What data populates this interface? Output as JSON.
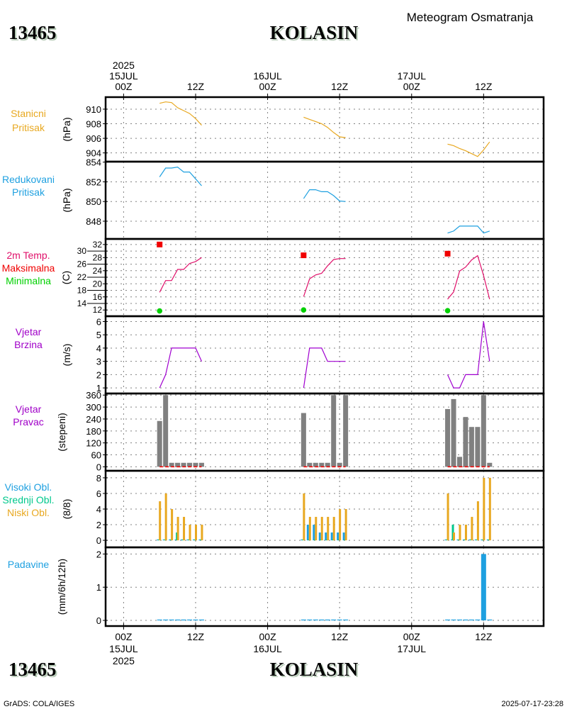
{
  "header": {
    "station_id": "13465",
    "station_name": "KOLASIN",
    "title": "Meteogram Osmatranja"
  },
  "footer": {
    "station_id": "13465",
    "station_name": "KOLASIN",
    "credit": "GrADS: COLA/IGES",
    "timestamp": "2025-07-17-23:28"
  },
  "time_axis": {
    "xlim_hours_from_15JUL_00Z": [
      -3,
      70
    ],
    "grid_hours": [
      0,
      12,
      24,
      36,
      48,
      60
    ],
    "top_labels": [
      {
        "hour": 0,
        "lines": [
          "2025",
          "15JUL",
          "00Z"
        ]
      },
      {
        "hour": 12,
        "lines": [
          "12Z"
        ]
      },
      {
        "hour": 24,
        "lines": [
          "16JUL",
          "00Z"
        ]
      },
      {
        "hour": 36,
        "lines": [
          "12Z"
        ]
      },
      {
        "hour": 48,
        "lines": [
          "17JUL",
          "00Z"
        ]
      },
      {
        "hour": 60,
        "lines": [
          "12Z"
        ]
      }
    ],
    "bottom_labels": [
      {
        "hour": 0,
        "lines": [
          "00Z",
          "15JUL",
          "2025"
        ]
      },
      {
        "hour": 12,
        "lines": [
          "12Z"
        ]
      },
      {
        "hour": 24,
        "lines": [
          "00Z",
          "16JUL"
        ]
      },
      {
        "hour": 36,
        "lines": [
          "12Z"
        ]
      },
      {
        "hour": 48,
        "lines": [
          "00Z",
          "17JUL"
        ]
      },
      {
        "hour": 60,
        "lines": [
          "12Z"
        ]
      }
    ]
  },
  "chart_data": [
    {
      "id": "station-pressure",
      "type": "line",
      "labels": [
        {
          "text": "Stanicni",
          "color": "#e8a820"
        },
        {
          "text": "Pritisak",
          "color": "#e8a820"
        }
      ],
      "unit": "(hPa)",
      "ylim": [
        902.8,
        911.65
      ],
      "yticks": [
        904,
        906,
        908,
        910
      ],
      "series": [
        {
          "name": "Stanicni Pritisak",
          "color": "#e8a820",
          "x_hours": [
            [
              6,
              7,
              8,
              9,
              10,
              11,
              12,
              13
            ],
            [
              30,
              31,
              32,
              33,
              34,
              35,
              36,
              37
            ],
            [
              54,
              55,
              56,
              57,
              58,
              59,
              60,
              61
            ]
          ],
          "values": [
            [
              910.8,
              911.0,
              910.9,
              910.2,
              909.8,
              909.4,
              908.7,
              907.8
            ],
            [
              908.9,
              908.6,
              908.3,
              908.0,
              907.5,
              906.8,
              906.2,
              906.1
            ],
            [
              905.2,
              905.0,
              904.6,
              904.3,
              903.9,
              903.5,
              904.4,
              905.5
            ]
          ]
        }
      ]
    },
    {
      "id": "reduced-pressure",
      "type": "line",
      "labels": [
        {
          "text": "Redukovani",
          "color": "#1ea0e0"
        },
        {
          "text": "Pritisak",
          "color": "#1ea0e0"
        }
      ],
      "unit": "(hPa)",
      "ylim": [
        846.2,
        854.05
      ],
      "yticks": [
        848,
        850,
        852,
        854
      ],
      "series": [
        {
          "name": "Redukovani Pritisak",
          "color": "#1ea0e0",
          "x_hours": [
            [
              6,
              7,
              8,
              9,
              10,
              11,
              12,
              13
            ],
            [
              30,
              31,
              32,
              33,
              34,
              35,
              36,
              37
            ],
            [
              54,
              55,
              56,
              57,
              58,
              59,
              60,
              61
            ]
          ],
          "values": [
            [
              852.5,
              853.4,
              853.4,
              853.5,
              853.0,
              853.0,
              852.3,
              851.6
            ],
            [
              850.3,
              851.2,
              851.2,
              851.0,
              851.0,
              850.6,
              850.05,
              850.0
            ],
            [
              846.8,
              847.0,
              847.5,
              847.5,
              847.5,
              847.5,
              846.8,
              847.0
            ]
          ]
        }
      ]
    },
    {
      "id": "temperature",
      "type": "line",
      "labels": [
        {
          "text": "2m Temp.",
          "color": "#e0106a"
        },
        {
          "text": "Maksimalna",
          "color": "#f00000"
        },
        {
          "text": "Minimalna",
          "color": "#00d000"
        }
      ],
      "unit": "(C)",
      "ylim": [
        10.1,
        33.7
      ],
      "yticks": [
        12,
        14,
        16,
        18,
        20,
        22,
        24,
        26,
        28,
        30,
        32
      ],
      "series": [
        {
          "name": "2m Temp.",
          "color": "#e0106a",
          "x_hours": [
            [
              6,
              7,
              8,
              9,
              10,
              11,
              12,
              13
            ],
            [
              30,
              31,
              32,
              33,
              34,
              35,
              36,
              37
            ],
            [
              54,
              55,
              56,
              57,
              58,
              59,
              60,
              61
            ]
          ],
          "values": [
            [
              17.4,
              21.0,
              21.0,
              24.4,
              24.4,
              26.2,
              26.8,
              28.0
            ],
            [
              16.1,
              21.5,
              22.7,
              23.2,
              25.5,
              27.4,
              27.7,
              27.7
            ],
            [
              15.3,
              17.5,
              23.9,
              25.1,
              27.3,
              28.6,
              22.5,
              15.3
            ]
          ]
        }
      ],
      "markers": [
        {
          "name": "Maksimalna",
          "color": "#f00000",
          "shape": "square",
          "x_hours": [
            6,
            30,
            54
          ],
          "values": [
            32.0,
            28.7,
            29.2
          ]
        },
        {
          "name": "Minimalna",
          "color": "#00d000",
          "shape": "circle",
          "x_hours": [
            6,
            30,
            54
          ],
          "values": [
            11.7,
            12.0,
            11.8
          ]
        }
      ]
    },
    {
      "id": "wind-speed",
      "type": "line",
      "labels": [
        {
          "text": "Vjetar",
          "color": "#a000c8"
        },
        {
          "text": "Brzina",
          "color": "#a000c8"
        }
      ],
      "unit": "(m/s)",
      "ylim": [
        0.58,
        6.4
      ],
      "yticks": [
        1,
        2,
        3,
        4,
        5,
        6
      ],
      "series": [
        {
          "name": "Vjetar Brzina",
          "color": "#a000d0",
          "x_hours": [
            [
              6,
              7,
              8,
              9,
              10,
              11,
              12,
              13
            ],
            [
              30,
              31,
              32,
              33,
              34,
              35,
              36,
              37
            ],
            [
              54,
              55,
              56,
              57,
              58,
              59,
              60,
              61
            ]
          ],
          "values": [
            [
              1,
              2,
              4,
              4,
              4,
              4,
              4,
              3
            ],
            [
              1,
              4,
              4,
              4,
              3,
              3,
              3,
              3
            ],
            [
              2,
              1,
              1,
              2,
              2,
              2,
              6,
              3
            ]
          ]
        }
      ]
    },
    {
      "id": "wind-direction",
      "type": "bar",
      "labels": [
        {
          "text": "Vjetar",
          "color": "#a000c8"
        },
        {
          "text": "Pravac",
          "color": "#a000c8"
        }
      ],
      "unit": "(stepeni)",
      "ylim": [
        -20,
        368
      ],
      "yticks": [
        0,
        60,
        120,
        180,
        240,
        300,
        360
      ],
      "series": [
        {
          "name": "Vjetar Pravac",
          "color": "#808080",
          "x_hours": [
            [
              6,
              7,
              8,
              9,
              10,
              11,
              12,
              13
            ],
            [
              30,
              31,
              32,
              33,
              34,
              35,
              36,
              37
            ],
            [
              54,
              55,
              56,
              57,
              58,
              59,
              60,
              61
            ]
          ],
          "values": [
            [
              230,
              360,
              20,
              20,
              20,
              20,
              20,
              20
            ],
            [
              270,
              20,
              20,
              20,
              20,
              360,
              20,
              360
            ],
            [
              290,
              340,
              50,
              250,
              200,
              200,
              360,
              20
            ]
          ]
        }
      ],
      "reference_line": {
        "value": 0,
        "color": "#ff0000"
      }
    },
    {
      "id": "cloud-cover",
      "type": "bar",
      "labels": [
        {
          "text": "Visoki Obl.",
          "color": "#1ea0e0"
        },
        {
          "text": "Srednji Obl.",
          "color": "#00c88c"
        },
        {
          "text": "Niski Obl.",
          "color": "#e8a820"
        }
      ],
      "unit": "(8/8)",
      "ylim": [
        -0.9,
        8.9
      ],
      "yticks": [
        0,
        2,
        4,
        6,
        8
      ],
      "series": [
        {
          "name": "Visoki Obl.",
          "color": "#1ea0e0",
          "x_hours": [
            [
              6,
              7,
              8,
              9,
              10,
              11,
              12,
              13
            ],
            [
              30,
              31,
              32,
              33,
              34,
              35,
              36,
              37
            ],
            [
              54,
              55,
              56,
              57,
              58,
              59,
              60,
              61
            ]
          ],
          "values": [
            [
              0,
              0,
              0,
              0,
              0,
              0,
              0,
              0
            ],
            [
              0,
              2,
              2,
              1,
              1,
              1,
              1,
              1
            ],
            [
              0,
              0,
              0,
              0,
              0,
              0,
              0,
              0
            ]
          ]
        },
        {
          "name": "Srednji Obl.",
          "color": "#00c88c",
          "x_hours": [
            [
              6,
              7,
              8,
              9,
              10,
              11,
              12,
              13
            ],
            [
              30,
              31,
              32,
              33,
              34,
              35,
              36,
              37
            ],
            [
              54,
              55,
              56,
              57,
              58,
              59,
              60,
              61
            ]
          ],
          "values": [
            [
              0,
              0,
              0,
              1,
              0,
              0,
              0,
              0
            ],
            [
              0,
              0,
              0,
              0,
              0,
              0,
              0,
              0
            ],
            [
              0,
              2,
              0,
              0,
              0,
              0,
              0,
              0
            ]
          ]
        },
        {
          "name": "Niski Obl.",
          "color": "#e8a820",
          "x_hours": [
            [
              6,
              7,
              8,
              9,
              10,
              11,
              12,
              13
            ],
            [
              30,
              31,
              32,
              33,
              34,
              35,
              36,
              37
            ],
            [
              54,
              55,
              56,
              57,
              58,
              59,
              60,
              61
            ]
          ],
          "values": [
            [
              5,
              6,
              4,
              3,
              3,
              2,
              2,
              2
            ],
            [
              6,
              3,
              3,
              3,
              3,
              3,
              4,
              4
            ],
            [
              6,
              1,
              2,
              2,
              3,
              5,
              8,
              8
            ]
          ]
        }
      ]
    },
    {
      "id": "precipitation",
      "type": "bar",
      "labels": [
        {
          "text": "Padavine",
          "color": "#1ea0e0"
        }
      ],
      "unit": "(mm/6h/12h)",
      "ylim": [
        -0.17,
        2.2
      ],
      "yticks": [
        0,
        1,
        2
      ],
      "series": [
        {
          "name": "Padavine",
          "color": "#1ea0e0",
          "x_hours": [
            [
              6,
              7,
              8,
              9,
              10,
              11,
              12,
              13
            ],
            [
              30,
              31,
              32,
              33,
              34,
              35,
              36,
              37
            ],
            [
              54,
              55,
              56,
              57,
              58,
              59,
              60,
              61
            ]
          ],
          "values": [
            [
              0,
              0,
              0,
              0,
              0,
              0,
              0,
              0
            ],
            [
              0,
              0,
              0,
              0,
              0,
              0,
              0,
              0
            ],
            [
              0,
              0,
              0,
              0,
              0,
              0,
              2.0,
              0
            ]
          ]
        }
      ]
    }
  ]
}
